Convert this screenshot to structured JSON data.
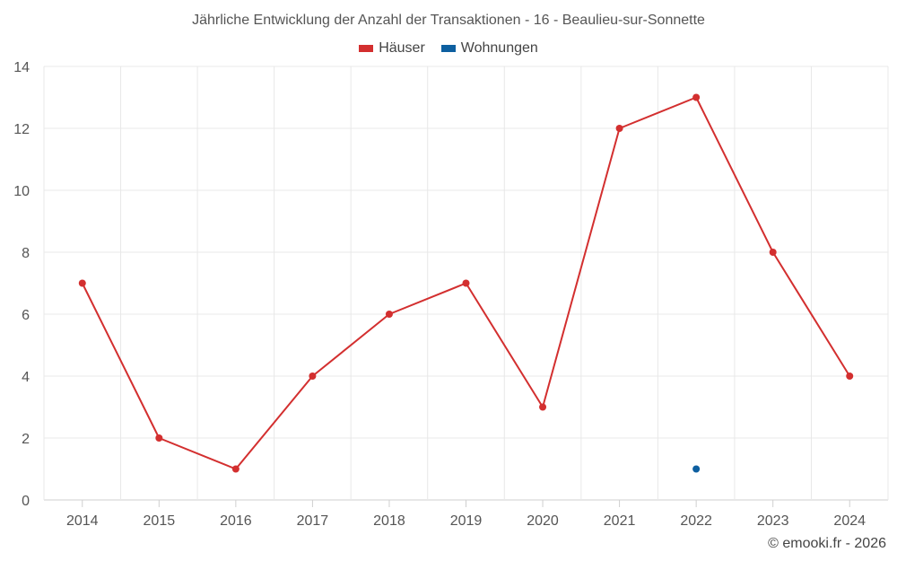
{
  "title": "Jährliche Entwicklung der Anzahl der Transaktionen - 16 - Beaulieu-sur-Sonnette",
  "credit": "© emooki.fr - 2026",
  "colors": {
    "houses": "#d32f2f",
    "apartments": "#0d5fa0",
    "grid": "#e8e8e8",
    "axis": "#cfcfcf"
  },
  "chart_data": {
    "type": "line",
    "title": "Jährliche Entwicklung der Anzahl der Transaktionen - 16 - Beaulieu-sur-Sonnette",
    "x": [
      "2014",
      "2015",
      "2016",
      "2017",
      "2018",
      "2019",
      "2020",
      "2021",
      "2022",
      "2023",
      "2024"
    ],
    "ylim": [
      0,
      14
    ],
    "yticks": [
      0,
      2,
      4,
      6,
      8,
      10,
      12,
      14
    ],
    "grid": true,
    "legend_position": "top-center",
    "series": [
      {
        "name": "Häuser",
        "color": "#d32f2f",
        "values": [
          7,
          2,
          1,
          4,
          6,
          7,
          3,
          12,
          13,
          8,
          4
        ]
      },
      {
        "name": "Wohnungen",
        "color": "#0d5fa0",
        "values": [
          null,
          null,
          null,
          null,
          null,
          null,
          null,
          null,
          1,
          null,
          null
        ]
      }
    ]
  }
}
